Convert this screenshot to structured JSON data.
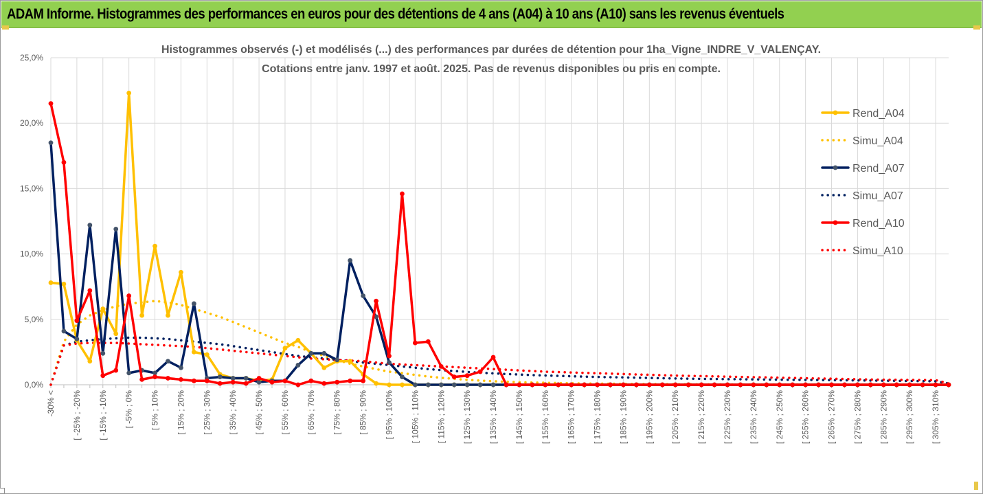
{
  "header": {
    "banner_title": "ADAM Informe. Histogrammes des performances en euros pour des détentions de 4 ans (A04) à 10 ans (A10) sans les revenus éventuels",
    "banner_color": "#92d050"
  },
  "chart_data": {
    "type": "line",
    "title": "Histogrammes observés (-) et modélisés (...) des performances par durées de détention pour 1ha_Vigne_INDRE_V_VALENÇAY.",
    "subtitle": "Cotations entre janv. 1997 et août. 2025. Pas de revenus disponibles ou pris en compte.",
    "ylim": [
      0,
      25
    ],
    "y_ticks": [
      "0,0%",
      "5,0%",
      "10,0%",
      "15,0%",
      "20,0%",
      "25,0%"
    ],
    "x_tick_labels": [
      "-30% <",
      "[ -25% ; -20%",
      "[ -15% ; -10%",
      "[ -5% ; 0%",
      "[ 5% ; 10%",
      "[ 15% ; 20%",
      "[ 25% ; 30%",
      "[ 35% ; 40%",
      "[ 45% ; 50%",
      "[ 55% ; 60%",
      "[ 65% ; 70%",
      "[ 75% ; 80%",
      "[ 85% ; 90%",
      "[ 95% ; 100%",
      "[ 105% ; 110%",
      "[ 115% ; 120%",
      "[ 125% ; 130%",
      "[ 135% ; 140%",
      "[ 145% ; 150%",
      "[ 155% ; 160%",
      "[ 165% ; 170%",
      "[ 175% ; 180%",
      "[ 185% ; 190%",
      "[ 195% ; 200%",
      "[ 205% ; 210%",
      "[ 215% ; 220%",
      "[ 225% ; 230%",
      "[ 235% ; 240%",
      "[ 245% ; 250%",
      "[ 255% ; 260%",
      "[ 265% ; 270%",
      "[ 275% ; 280%",
      "[ 285% ; 290%",
      "[ 295% ; 300%",
      "[ 305% ; 310%"
    ],
    "grid": true,
    "legend_position": "right",
    "series": [
      {
        "name": "Rend_A04",
        "color": "#ffc000",
        "style": "solid",
        "markers": true,
        "values": [
          7.8,
          7.7,
          3.4,
          1.8,
          5.8,
          3.9,
          22.3,
          5.3,
          10.6,
          5.3,
          8.6,
          2.5,
          2.3,
          0.8,
          0.5,
          0.5,
          0.3,
          0.4,
          2.8,
          3.4,
          2.4,
          1.3,
          1.8,
          1.8,
          0.8,
          0.1,
          0.0,
          0.0,
          0.0,
          0,
          0,
          0,
          0,
          0,
          0,
          0,
          0,
          0,
          0,
          0,
          0,
          0,
          0,
          0,
          0,
          0,
          0,
          0,
          0,
          0,
          0,
          0,
          0,
          0,
          0,
          0,
          0,
          0,
          0,
          0,
          0,
          0,
          0,
          0,
          0,
          0,
          0,
          0,
          0,
          0
        ]
      },
      {
        "name": "Simu_A04",
        "color": "#ffc000",
        "style": "dotted",
        "markers": false,
        "values": [
          0.0,
          3.3,
          4.6,
          5.3,
          5.7,
          6.0,
          6.2,
          6.3,
          6.4,
          6.3,
          6.1,
          5.8,
          5.5,
          5.2,
          4.8,
          4.4,
          4.0,
          3.6,
          3.2,
          2.9,
          2.5,
          2.2,
          1.9,
          1.6,
          1.4,
          1.2,
          1.0,
          0.9,
          0.75,
          0.63,
          0.53,
          0.45,
          0.38,
          0.32,
          0.27,
          0.23,
          0.2,
          0.17,
          0.15,
          0.13,
          0.11,
          0.1,
          0.09,
          0.08,
          0.07,
          0.06,
          0.05,
          0.05,
          0.04,
          0.04,
          0.03,
          0.03,
          0.03,
          0.02,
          0.02,
          0.02,
          0.02,
          0.02,
          0.01,
          0.01,
          0.01,
          0.01,
          0.01,
          0.01,
          0.01,
          0.01,
          0.01,
          0.01,
          0.01,
          0.01
        ]
      },
      {
        "name": "Rend_A07",
        "color": "#002060",
        "style": "solid",
        "markers": true,
        "values": [
          18.5,
          4.1,
          3.5,
          12.2,
          2.4,
          11.9,
          0.9,
          1.1,
          0.9,
          1.8,
          1.3,
          6.2,
          0.5,
          0.6,
          0.5,
          0.5,
          0.2,
          0.3,
          0.3,
          1.5,
          2.4,
          2.4,
          1.9,
          9.5,
          6.8,
          5.2,
          1.7,
          0.6,
          0.0,
          0.0,
          0,
          0,
          0,
          0,
          0,
          0,
          0,
          0,
          0,
          0,
          0,
          0,
          0,
          0,
          0,
          0,
          0,
          0,
          0,
          0,
          0,
          0,
          0,
          0,
          0,
          0,
          0,
          0,
          0,
          0,
          0,
          0,
          0,
          0,
          0,
          0,
          0,
          0,
          0,
          0
        ]
      },
      {
        "name": "Simu_A07",
        "color": "#002060",
        "style": "dotted",
        "markers": false,
        "values": [
          0.0,
          3.0,
          3.3,
          3.4,
          3.5,
          3.55,
          3.6,
          3.6,
          3.55,
          3.5,
          3.4,
          3.3,
          3.2,
          3.1,
          2.95,
          2.8,
          2.65,
          2.5,
          2.35,
          2.2,
          2.1,
          2.0,
          1.9,
          1.8,
          1.7,
          1.6,
          1.5,
          1.4,
          1.3,
          1.2,
          1.12,
          1.05,
          0.98,
          0.92,
          0.87,
          0.82,
          0.78,
          0.74,
          0.71,
          0.68,
          0.65,
          0.62,
          0.6,
          0.58,
          0.56,
          0.54,
          0.52,
          0.5,
          0.48,
          0.47,
          0.45,
          0.44,
          0.43,
          0.42,
          0.41,
          0.4,
          0.39,
          0.38,
          0.37,
          0.36,
          0.35,
          0.34,
          0.33,
          0.32,
          0.31,
          0.3,
          0.29,
          0.28,
          0.27,
          0.1
        ]
      },
      {
        "name": "Rend_A10",
        "color": "#ff0000",
        "style": "solid",
        "markers": true,
        "values": [
          21.5,
          17.0,
          4.9,
          7.2,
          0.7,
          1.1,
          6.8,
          0.4,
          0.6,
          0.5,
          0.4,
          0.3,
          0.3,
          0.1,
          0.2,
          0.1,
          0.5,
          0.2,
          0.3,
          0.0,
          0.3,
          0.1,
          0.2,
          0.3,
          0.3,
          6.4,
          2.2,
          14.6,
          3.2,
          3.3,
          1.4,
          0.6,
          0.7,
          1.0,
          2.1,
          0.0,
          0.0,
          0,
          0,
          0,
          0,
          0,
          0,
          0,
          0,
          0,
          0,
          0,
          0,
          0,
          0,
          0,
          0,
          0,
          0,
          0,
          0,
          0,
          0,
          0,
          0,
          0,
          0,
          0,
          0,
          0,
          0,
          0,
          0,
          0
        ]
      },
      {
        "name": "Simu_A10",
        "color": "#ff0000",
        "style": "dotted",
        "markers": false,
        "values": [
          0.0,
          3.0,
          3.15,
          3.2,
          3.2,
          3.2,
          3.15,
          3.1,
          3.05,
          3.0,
          2.95,
          2.9,
          2.8,
          2.7,
          2.6,
          2.5,
          2.4,
          2.3,
          2.2,
          2.1,
          2.0,
          1.95,
          1.9,
          1.85,
          1.8,
          1.7,
          1.6,
          1.55,
          1.5,
          1.45,
          1.4,
          1.35,
          1.3,
          1.25,
          1.2,
          1.15,
          1.1,
          1.05,
          1.0,
          0.97,
          0.94,
          0.91,
          0.88,
          0.85,
          0.82,
          0.79,
          0.76,
          0.73,
          0.7,
          0.68,
          0.66,
          0.64,
          0.62,
          0.6,
          0.58,
          0.56,
          0.54,
          0.52,
          0.5,
          0.48,
          0.46,
          0.44,
          0.42,
          0.4,
          0.39,
          0.38,
          0.37,
          0.36,
          0.35,
          0.1
        ]
      }
    ]
  }
}
